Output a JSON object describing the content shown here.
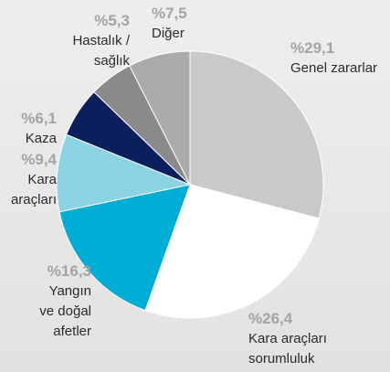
{
  "chart_data": {
    "type": "pie",
    "categories": [
      "Genel zararlar",
      "Kara araçları\nsorumluluk",
      "Yangın\nve doğal\nafetler",
      "Kara\naraçları",
      "Kaza",
      "Hastalık /\nsağlık",
      "Diğer"
    ],
    "values": [
      29.1,
      26.4,
      16.3,
      9.4,
      6.1,
      5.3,
      7.5
    ],
    "value_labels": [
      "%29,1",
      "%26,4",
      "%16,3",
      "%9,4",
      "%6,1",
      "%5,3",
      "%7,5"
    ],
    "colors": [
      "#c9c9c9",
      "#ffffff",
      "#00add5",
      "#8dd3e6",
      "#0b1f5c",
      "#8a8a8a",
      "#ababab"
    ]
  }
}
